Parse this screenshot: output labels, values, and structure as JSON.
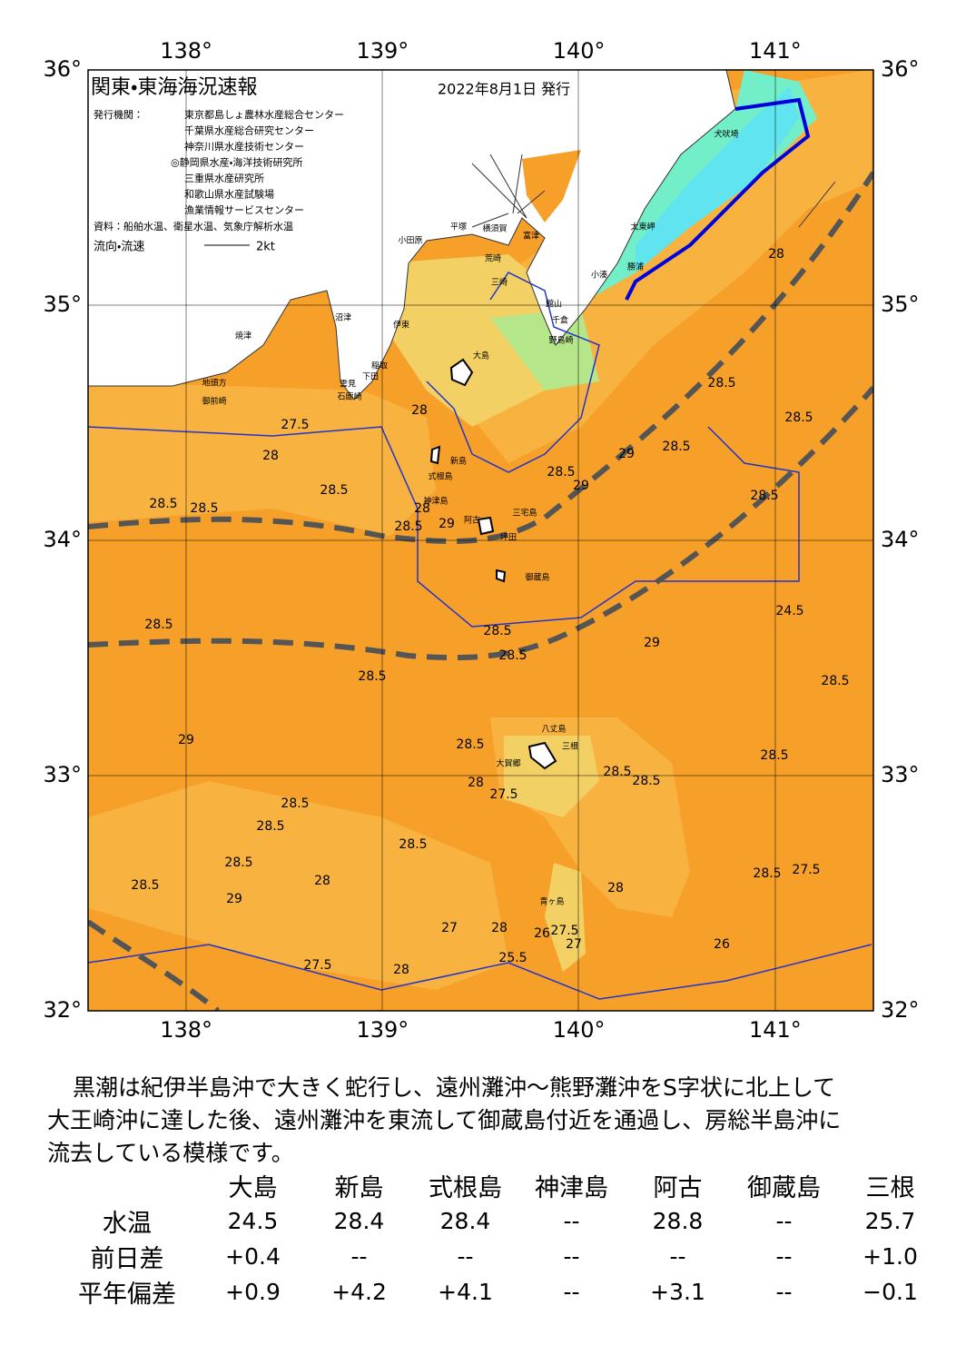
{
  "map": {
    "title": "関東・東海海況速報",
    "date": "2022年8月1日 発行",
    "issuer_label": "発行機関：",
    "issuers": [
      "東京都島しょ農林水産総合センター",
      "千葉県水産総合研究センター",
      "神奈川県水産技術センター",
      "◎静岡県水産・海洋技術研究所",
      "三重県水産研究所",
      "和歌山県水産試験場",
      "漁業情報サービスセンター"
    ],
    "source": "資料：船舶水温、衛星水温、気象庁解析水温",
    "flow_legend": "流向・流速",
    "flow_scale": "2kt",
    "lon_ticks": [
      {
        "value": 138,
        "label": "138°"
      },
      {
        "value": 139,
        "label": "139°"
      },
      {
        "value": 140,
        "label": "140°"
      },
      {
        "value": 141,
        "label": "141°"
      }
    ],
    "lat_ticks": [
      {
        "value": 36,
        "label": "36°"
      },
      {
        "value": 35,
        "label": "35°"
      },
      {
        "value": 34,
        "label": "34°"
      },
      {
        "value": 33,
        "label": "33°"
      },
      {
        "value": 32,
        "label": "32°"
      }
    ],
    "places": [
      "大島",
      "新島",
      "式根島",
      "神津島",
      "三宅島",
      "阿古",
      "坪田",
      "御蔵島",
      "八丈島",
      "三根",
      "大賀郷",
      "青ヶ島",
      "小田原",
      "平塚",
      "横須賀",
      "富津",
      "館山",
      "千倉",
      "野島崎",
      "三崎",
      "荒崎",
      "沼津",
      "伊東",
      "焼津",
      "稲取",
      "下田",
      "雲見",
      "石廊崎",
      "地頭方",
      "御前崎",
      "犬吠埼",
      "太東岬",
      "勝浦",
      "小湊"
    ],
    "contour_labels": [
      "27.5",
      "28",
      "28.5",
      "28.5",
      "28.5",
      "28.5",
      "28.5",
      "29",
      "28.5",
      "28",
      "29",
      "28",
      "28.5",
      "29",
      "29",
      "28.5",
      "28.5",
      "29",
      "28.5",
      "28.5",
      "28.5",
      "28",
      "27.5",
      "28",
      "28.5",
      "28.5",
      "28.5",
      "28.5",
      "28.5",
      "28.5",
      "28.5",
      "28.5",
      "28",
      "28.5",
      "28",
      "29",
      "28.5",
      "27.5",
      "27",
      "28",
      "27.5",
      "28",
      "25.5",
      "26",
      "27.5",
      "27",
      "26",
      "24.5",
      "28.5",
      "28.5"
    ]
  },
  "summary": [
    "黒潮は紀伊半島沖で大きく蛇行し、遠州灘沖～熊野灘沖をS字状に北上して",
    "大王崎沖に達した後、遠州灘沖を東流して御蔵島付近を通過し、房総半島沖に",
    "流去している模様です。"
  ],
  "table": {
    "columns": [
      "大島",
      "新島",
      "式根島",
      "神津島",
      "阿古",
      "御蔵島",
      "三根"
    ],
    "rows": [
      [
        "水温",
        "24.5",
        "28.4",
        "28.4",
        "--",
        "28.8",
        "--",
        "25.7"
      ],
      [
        "前日差",
        "+0.4",
        "--",
        "--",
        "--",
        "--",
        "--",
        "+1.0"
      ],
      [
        "平年偏差",
        "+0.9",
        "+4.2",
        "+4.1",
        "--",
        "+3.1",
        "--",
        "−0.1"
      ]
    ]
  }
}
